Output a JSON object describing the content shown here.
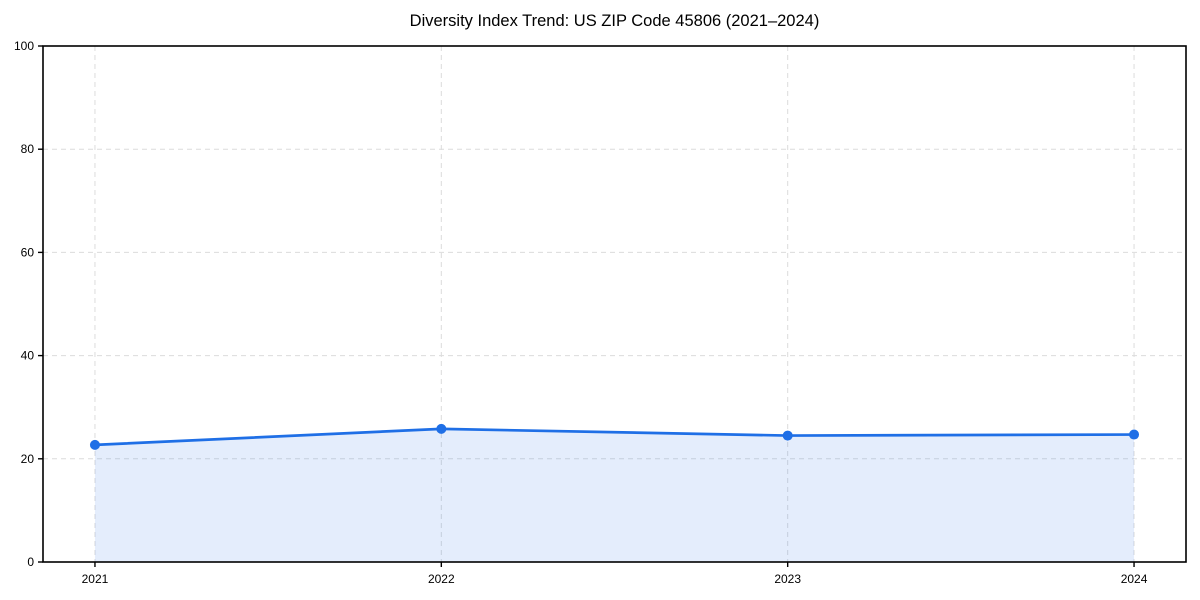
{
  "chart_data": {
    "type": "area",
    "title": "Diversity Index Trend: US ZIP Code 45806 (2021–2024)",
    "categories": [
      "2021",
      "2022",
      "2023",
      "2024"
    ],
    "series": [
      {
        "name": "Diversity Index",
        "values": [
          22.7,
          25.8,
          24.5,
          24.7
        ]
      }
    ],
    "xlabel": "",
    "ylabel": "",
    "ylim": [
      0,
      100
    ],
    "yticks": [
      0,
      20,
      40,
      60,
      80,
      100
    ],
    "legend": "none",
    "grid": {
      "show": true,
      "style": "dashed",
      "color": "#dcdcdc"
    },
    "line_color": "#1f6fe6",
    "marker_color": "#1f6fe6",
    "fill_color": "#1f6fe6",
    "fill_opacity": 0.12,
    "axis_color": "#000000",
    "tick_label_color": "#000000",
    "background_color": "#ffffff"
  }
}
